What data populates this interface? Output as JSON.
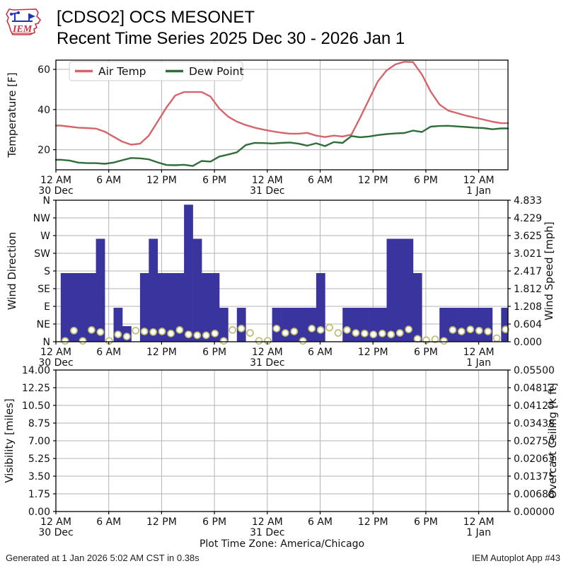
{
  "header": {
    "logo_text": "IEM",
    "title_line1": "[CDSO2] OCS MESONET",
    "title_line2": "Recent Time Series 2025 Dec 30 - 2026 Jan 1"
  },
  "footer": {
    "generated": "Generated at 1 Jan 2026 5:02 AM CST in 0.38s",
    "app_id": "IEM Autoplot App #43"
  },
  "time_axis": {
    "ticks": [
      {
        "hour": 0,
        "label": "12 AM",
        "date": "30 Dec"
      },
      {
        "hour": 6,
        "label": "6 AM"
      },
      {
        "hour": 12,
        "label": "12 PM"
      },
      {
        "hour": 18,
        "label": "6 PM"
      },
      {
        "hour": 24,
        "label": "12 AM",
        "date": "31 Dec"
      },
      {
        "hour": 30,
        "label": "6 AM"
      },
      {
        "hour": 36,
        "label": "12 PM"
      },
      {
        "hour": 42,
        "label": "6 PM"
      },
      {
        "hour": 48,
        "label": "12 AM",
        "date": "1 Jan"
      }
    ],
    "note": "Plot Time Zone: America/Chicago"
  },
  "chart_data": [
    {
      "type": "line",
      "ylabel": "Temperature [F]",
      "yticks": [
        20,
        40,
        60
      ],
      "ylim": [
        10,
        64.6
      ],
      "legend_position": "top-left",
      "grid": true,
      "series": [
        {
          "name": "Air Temp",
          "color": "#d5646c",
          "values": [
            32,
            31.5,
            31,
            30.8,
            30.5,
            29,
            26.5,
            24,
            22.5,
            23,
            27,
            34,
            41,
            47,
            48.7,
            48.7,
            48.7,
            46.5,
            40.5,
            36.5,
            34,
            32.3,
            31,
            30,
            29.2,
            28.5,
            28,
            28,
            28.4,
            27,
            26.3,
            27,
            26.6,
            27.5,
            36,
            45,
            54,
            59.5,
            62.5,
            63.8,
            63.6,
            57.5,
            49,
            42.5,
            39.5,
            38.2,
            37,
            36,
            35,
            34,
            33.2
          ]
        },
        {
          "name": "Dew Point",
          "color": "#2f6e3a",
          "values": [
            15,
            14.6,
            13.6,
            13.3,
            13.3,
            13,
            13.6,
            14.8,
            15.9,
            15.7,
            15.2,
            13.7,
            12.4,
            12.3,
            12.5,
            11.9,
            14.4,
            14.1,
            16.6,
            17.6,
            18.7,
            22.3,
            23.4,
            23.3,
            23.1,
            23.4,
            23.6,
            23,
            22,
            23.2,
            21.8,
            23.8,
            23.4,
            26.8,
            26.2,
            26.6,
            27.3,
            27.8,
            28.1,
            28.3,
            29.5,
            28.8,
            31.5,
            31.8,
            31.9,
            31.6,
            31.3,
            31,
            30.8,
            30.2,
            30.6
          ]
        }
      ]
    },
    {
      "type": "bar",
      "ylabel": "Wind Direction",
      "ylabel_right": "Wind Speed [mph]",
      "dir_labels": [
        "N",
        "NE",
        "E",
        "SE",
        "S",
        "SW",
        "W",
        "NW",
        "N"
      ],
      "right_ticks": [
        "0.000",
        "0.604",
        "1.208",
        "1.812",
        "2.417",
        "3.021",
        "3.625",
        "4.229",
        "4.833"
      ],
      "speed_ylim": [
        0,
        4.833
      ],
      "bar_color": "#3a359e",
      "marker_color": "#bfbc6f",
      "grid": true,
      "bar_values_dir_units": [
        3.88,
        3.88,
        3.88,
        3.88,
        5.82,
        0,
        1.92,
        0.88,
        0,
        3.88,
        5.82,
        3.88,
        3.88,
        3.88,
        7.75,
        5.82,
        3.88,
        3.88,
        1.92,
        0,
        1.92,
        0,
        0,
        0,
        1.92,
        1.92,
        1.92,
        1.92,
        1.92,
        3.88,
        0,
        0,
        1.92,
        1.92,
        1.92,
        1.92,
        1.92,
        5.82,
        5.82,
        5.82,
        3.88,
        0,
        0,
        1.92,
        1.92,
        1.92,
        1.92,
        1.92,
        1.92,
        0,
        1.92
      ],
      "speed_values_mph": [
        0.03,
        0.38,
        0.03,
        0.4,
        0.33,
        0.03,
        0.25,
        0.18,
        0.38,
        0.35,
        0.33,
        0.35,
        0.28,
        0.4,
        0.25,
        0.22,
        0.22,
        0.28,
        0.03,
        0.4,
        0.45,
        0.3,
        0.03,
        0.03,
        0.45,
        0.3,
        0.35,
        0.03,
        0.45,
        0.4,
        0.48,
        0.3,
        0.4,
        0.3,
        0.28,
        0.25,
        0.28,
        0.25,
        0.3,
        0.42,
        0.1,
        0.05,
        0.08,
        0.03,
        0.4,
        0.35,
        0.42,
        0.38,
        0.35,
        0.12,
        0.42
      ]
    },
    {
      "type": "empty",
      "ylabel": "Visibility [miles]",
      "ylabel_right": "Overcast Ceiling [k ft]",
      "ylabel_right_color": "#008000",
      "yticks_left": [
        "0.00",
        "1.75",
        "3.50",
        "5.25",
        "7.00",
        "8.75",
        "10.50",
        "12.25",
        "14.00"
      ],
      "yticks_right": [
        "0.00000",
        "0.00688",
        "0.01375",
        "0.02063",
        "0.02750",
        "0.03438",
        "0.04125",
        "0.04813",
        "0.05500"
      ],
      "grid": true,
      "values": []
    }
  ]
}
